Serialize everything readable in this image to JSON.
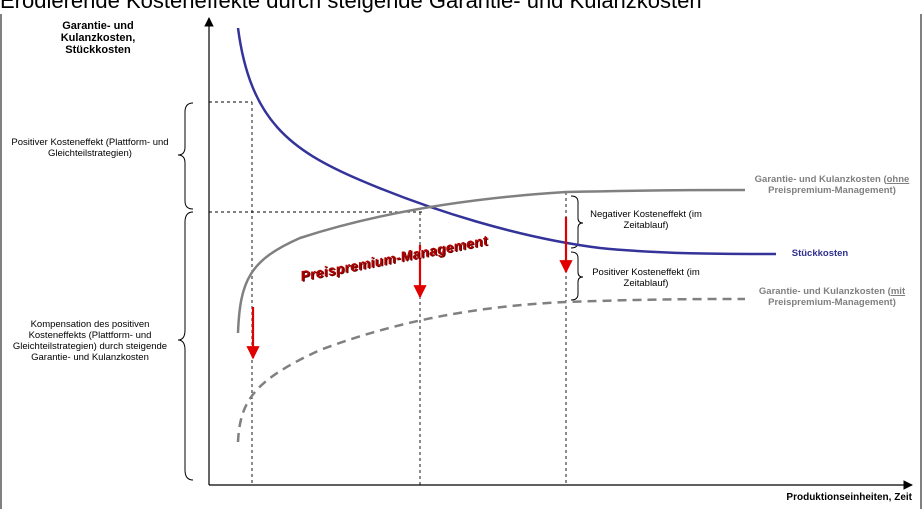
{
  "title": "Erodierende Kosteneffekte durch steigende Garantie- und Kulanzkosten",
  "y_axis_label": "Garantie- und Kulanzkosten, Stückkosten",
  "x_axis_label": "Produktionseinheiten, Zeit",
  "left_annotations": {
    "top": "Positiver Kosteneffekt (Plattform- und Gleichteilstrategien)",
    "bottom": "Kompensation des positiven Kosteneffekts (Plattform- und Gleichteilstrategien) durch steigende Garantie- und Kulanzkosten"
  },
  "right_annotations": {
    "negative": "Negativer Kosteneffekt (im Zeitablauf)",
    "positive": "Positiver Kosteneffekt (im Zeitablauf)"
  },
  "curve_labels": {
    "garantie_ohne_prefix": "Garantie- und Kulanzkosten (",
    "garantie_ohne_em": "ohne",
    "garantie_ohne_suffix": " Preispremium-Management)",
    "stueckkosten": "Stückkosten",
    "garantie_mit_prefix": "Garantie- und Kulanzkosten (",
    "garantie_mit_em": "mit",
    "garantie_mit_suffix": " Preispremium-Management)"
  },
  "banner": "Preispremium-Management",
  "colors": {
    "stueckkosten": "#33339a",
    "garantie": "#808080",
    "arrow": "#e00000",
    "axis": "#000000"
  }
}
